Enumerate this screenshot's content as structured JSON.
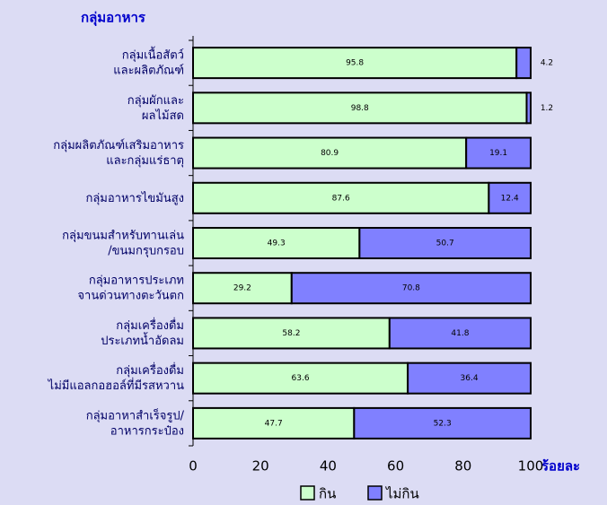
{
  "chart_data": {
    "type": "stacked_barh",
    "ylabel": "กลุ่มอาหาร",
    "xlabel": "ร้อยละ",
    "categories": [
      [
        "กลุ่มเนื้อสัตว์",
        "และผลิตภัณฑ์"
      ],
      [
        "กลุ่มผักและ",
        "ผลไม้สด"
      ],
      [
        "กลุ่มผลิตภัณฑ์เสริมอาหาร",
        "และกลุ่มแร่ธาตุ"
      ],
      [
        "กลุ่มอาหารไขมันสูง"
      ],
      [
        "กลุ่มขนมสำหรับทานเล่น",
        "/ขนมกรุบกรอบ"
      ],
      [
        "กลุ่มอาหารประเภท",
        "จานด่วนทางตะวันตก"
      ],
      [
        "กลุ่มเครื่องดื่ม",
        "ประเภทน้ำอัดลม"
      ],
      [
        "กลุ่มเครื่องดื่ม",
        "ไม่มีแอลกอฮอล์ที่มีรสหวาน"
      ],
      [
        "กลุ่มอาหาสำเร็จรูป/",
        "อาหารกระป๋อง"
      ]
    ],
    "series": [
      {
        "name": "กิน",
        "color": "#ccffcc",
        "values": [
          95.8,
          98.8,
          80.9,
          87.6,
          49.3,
          29.2,
          58.2,
          63.6,
          47.7
        ]
      },
      {
        "name": "ไม่กิน",
        "color": "#8080ff",
        "values": [
          4.2,
          1.2,
          19.1,
          12.4,
          50.7,
          70.8,
          41.8,
          36.4,
          52.3
        ]
      }
    ],
    "xlim": [
      0,
      100
    ],
    "xticks": [
      0,
      20,
      40,
      60,
      80,
      100
    ]
  }
}
